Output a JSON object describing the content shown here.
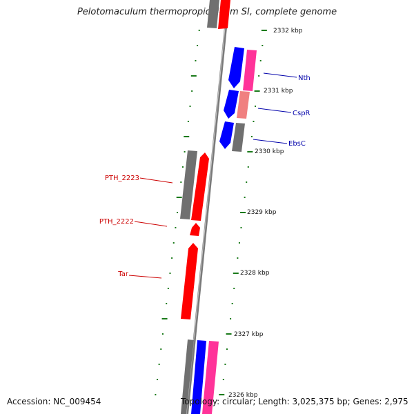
{
  "title": "Pelotomaculum thermopropionicum SI, complete genome",
  "footer": {
    "accession": "Accession: NC_009454",
    "summary": "Topology: circular; Length: 3,025,375 bp; Genes: 2,975"
  },
  "colors": {
    "forward_gene": "#ff0000",
    "reverse_gene": "#0000ff",
    "pink_gene": "#ff3399",
    "salmon_gene": "#f08080",
    "gray_gene": "#707070",
    "backbone": "#7a7a7a",
    "tick": "#1a7a1a",
    "right_label": "#0000aa",
    "left_label": "#cc0000"
  },
  "ruler_labels": [
    "2332 kbp",
    "2331 kbp",
    "2330 kbp",
    "2329 kbp",
    "2328 kbp",
    "2327 kbp",
    "2326 kbp"
  ],
  "gene_labels_right": [
    "Nth",
    "CspR",
    "EbsC"
  ],
  "gene_labels_left": [
    "PTH_2223",
    "PTH_2222",
    "Tar"
  ]
}
